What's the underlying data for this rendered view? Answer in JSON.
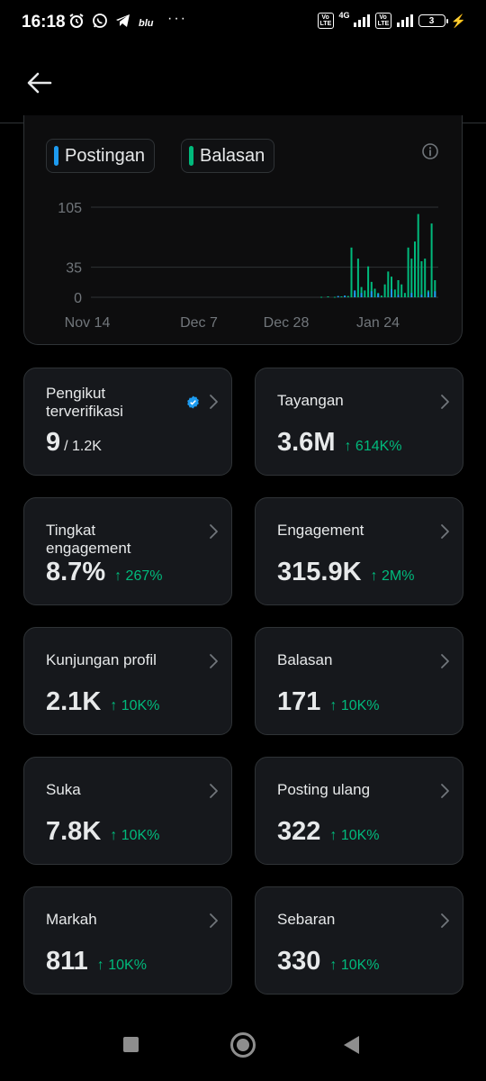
{
  "status_bar": {
    "time": "16:18",
    "carrier": "blu",
    "more": "···",
    "network": "4G",
    "battery": "3"
  },
  "legend": {
    "posts": "Postingan",
    "replies": "Balasan",
    "posts_color": "#1d9bf0",
    "replies_color": "#00ba7c"
  },
  "chart_data": {
    "type": "bar",
    "y_ticks": [
      "105",
      "35",
      "0"
    ],
    "x_ticks": [
      "Nov 14",
      "Dec 7",
      "Dec 28",
      "Jan 24"
    ],
    "ylim": [
      0,
      105
    ],
    "grid": true,
    "series": [
      {
        "name": "Balasan",
        "color": "#00ba7c",
        "points": [
          {
            "day": 69,
            "value": 0.5
          },
          {
            "day": 71,
            "value": 1
          },
          {
            "day": 73,
            "value": 0.5
          },
          {
            "day": 75,
            "value": 1
          },
          {
            "day": 77,
            "value": 1.5
          },
          {
            "day": 78,
            "value": 58
          },
          {
            "day": 79,
            "value": 5
          },
          {
            "day": 80,
            "value": 45
          },
          {
            "day": 81,
            "value": 12
          },
          {
            "day": 82,
            "value": 8
          },
          {
            "day": 83,
            "value": 36
          },
          {
            "day": 84,
            "value": 18
          },
          {
            "day": 85,
            "value": 10
          },
          {
            "day": 86,
            "value": 5
          },
          {
            "day": 87,
            "value": 2
          },
          {
            "day": 88,
            "value": 15
          },
          {
            "day": 89,
            "value": 30
          },
          {
            "day": 90,
            "value": 24
          },
          {
            "day": 91,
            "value": 9
          },
          {
            "day": 92,
            "value": 20
          },
          {
            "day": 93,
            "value": 15
          },
          {
            "day": 94,
            "value": 5
          },
          {
            "day": 95,
            "value": 58
          },
          {
            "day": 96,
            "value": 45
          },
          {
            "day": 97,
            "value": 65
          },
          {
            "day": 98,
            "value": 97
          },
          {
            "day": 99,
            "value": 42
          },
          {
            "day": 100,
            "value": 45
          },
          {
            "day": 101,
            "value": 8
          },
          {
            "day": 102,
            "value": 86
          },
          {
            "day": 103,
            "value": 20
          }
        ]
      },
      {
        "name": "Postingan",
        "color": "#1d9bf0",
        "points": [
          {
            "day": 74,
            "value": 1.5
          },
          {
            "day": 76,
            "value": 2
          },
          {
            "day": 79,
            "value": 8
          },
          {
            "day": 81,
            "value": 5
          },
          {
            "day": 84,
            "value": 7
          },
          {
            "day": 86,
            "value": 4
          },
          {
            "day": 90,
            "value": 9
          },
          {
            "day": 92,
            "value": 3
          },
          {
            "day": 96,
            "value": 5
          },
          {
            "day": 99,
            "value": 3
          },
          {
            "day": 101,
            "value": 6
          },
          {
            "day": 103,
            "value": 7
          }
        ]
      }
    ],
    "x_domain_days": [
      0,
      104
    ]
  },
  "stats": [
    {
      "label": "Pengikut terverifikasi",
      "value": "9",
      "sub": "/ 1.2K",
      "delta": "",
      "verified": true
    },
    {
      "label": "Tayangan",
      "value": "3.6M",
      "sub": "",
      "delta": "↑ 614K%"
    },
    {
      "label": "Tingkat engagement",
      "value": "8.7%",
      "sub": "",
      "delta": "↑ 267%"
    },
    {
      "label": "Engagement",
      "value": "315.9K",
      "sub": "",
      "delta": "↑ 2M%"
    },
    {
      "label": "Kunjungan profil",
      "value": "2.1K",
      "sub": "",
      "delta": "↑ 10K%"
    },
    {
      "label": "Balasan",
      "value": "171",
      "sub": "",
      "delta": "↑ 10K%"
    },
    {
      "label": "Suka",
      "value": "7.8K",
      "sub": "",
      "delta": "↑ 10K%"
    },
    {
      "label": "Posting ulang",
      "value": "322",
      "sub": "",
      "delta": "↑ 10K%"
    },
    {
      "label": "Markah",
      "value": "811",
      "sub": "",
      "delta": "↑ 10K%"
    },
    {
      "label": "Sebaran",
      "value": "330",
      "sub": "",
      "delta": "↑ 10K%"
    }
  ]
}
